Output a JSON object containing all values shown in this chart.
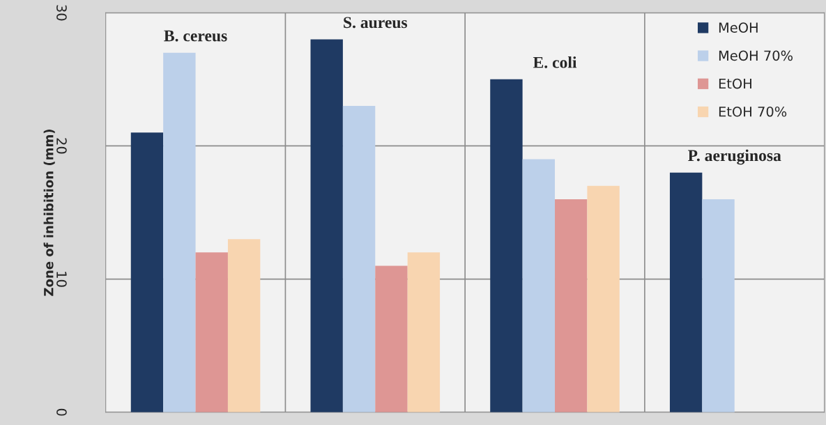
{
  "chart_data": {
    "type": "bar",
    "ylabel": "Zone of inhibition (mm)",
    "categories": [
      null,
      null,
      null,
      null
    ],
    "series": [
      {
        "name": "MeOH",
        "color": "#1f3a63",
        "values": [
          21,
          28,
          25,
          18
        ]
      },
      {
        "name": "MeOH 70%",
        "color": "#bcd0ea",
        "values": [
          27,
          23,
          19,
          16
        ]
      },
      {
        "name": "EtOH",
        "color": "#de9694",
        "values": [
          12,
          11,
          16,
          null
        ]
      },
      {
        "name": "EtOH 70%",
        "color": "#f8d5b0",
        "values": [
          13,
          12,
          17,
          null
        ]
      }
    ],
    "annotations": [
      "B. cereus",
      "S. aureus",
      "E. coli",
      "P. aeruginosa"
    ],
    "ylim": [
      0,
      30
    ],
    "yticks": [
      0,
      10,
      20,
      30
    ],
    "grid": true,
    "legend": "top right"
  }
}
